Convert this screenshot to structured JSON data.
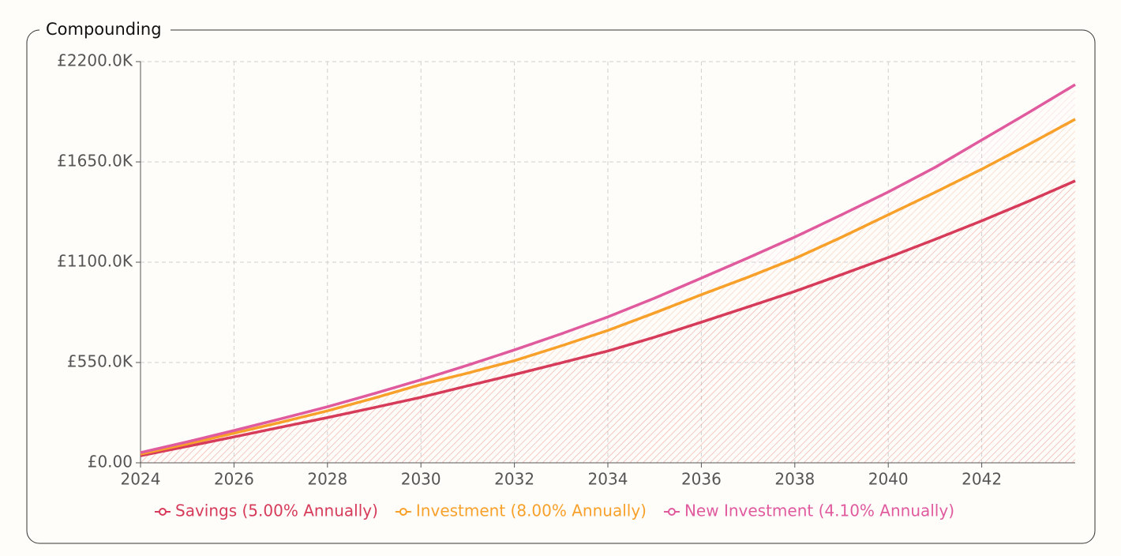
{
  "chart_data": {
    "type": "line",
    "title": "Compounding",
    "x": [
      2024,
      2025,
      2026,
      2027,
      2028,
      2029,
      2030,
      2031,
      2032,
      2033,
      2034,
      2035,
      2036,
      2037,
      2038,
      2039,
      2040,
      2041,
      2042,
      2043,
      2044
    ],
    "series": [
      {
        "name": "Savings (5.00% Annually)",
        "color": "#d63b5a",
        "values": [
          39000,
          90000,
          142000,
          195000,
          248000,
          303000,
          359000,
          422000,
          484000,
          548000,
          613000,
          689000,
          771000,
          855000,
          940000,
          1032000,
          1126000,
          1225000,
          1327000,
          1434000,
          1546000
        ]
      },
      {
        "name": "Investment (8.00% Annually)",
        "color": "#f7a02a",
        "values": [
          48000,
          104000,
          162000,
          222000,
          285000,
          355000,
          429000,
          492000,
          560000,
          641000,
          726000,
          822000,
          922000,
          1018000,
          1120000,
          1237000,
          1360000,
          1483000,
          1610000,
          1745000,
          1884000
        ]
      },
      {
        "name": "New Investment (4.10% Annually)",
        "color": "#e05a9e",
        "values": [
          56000,
          115000,
          177000,
          241000,
          307000,
          380000,
          455000,
          535000,
          619000,
          707000,
          800000,
          903000,
          1013000,
          1124000,
          1238000,
          1360000,
          1485000,
          1620000,
          1770000,
          1920000,
          2074000
        ]
      }
    ],
    "xlim": [
      2024,
      2044
    ],
    "xticks": [
      2024,
      2026,
      2028,
      2030,
      2032,
      2034,
      2036,
      2038,
      2040,
      2042
    ],
    "ylim": [
      0,
      2200000
    ],
    "yticks": [
      {
        "value": 0,
        "label": "£0.00"
      },
      {
        "value": 550000,
        "label": "£550.0K"
      },
      {
        "value": 1100000,
        "label": "£1100.0K"
      },
      {
        "value": 1650000,
        "label": "£1650.0K"
      },
      {
        "value": 2200000,
        "label": "£2200.0K"
      }
    ],
    "grid": true,
    "legend": "bottom"
  }
}
